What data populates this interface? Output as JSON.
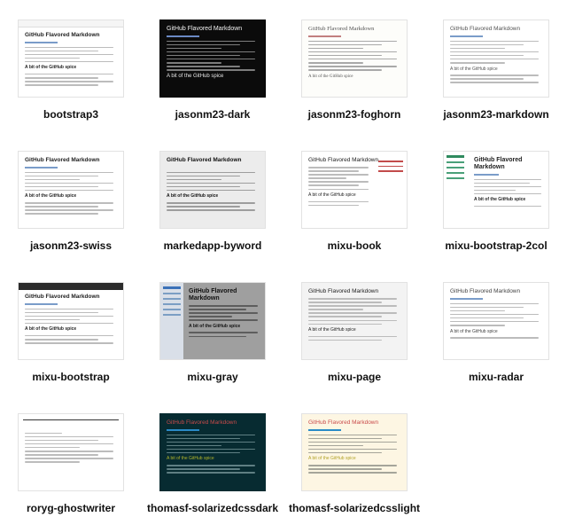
{
  "themes": [
    {
      "id": "bootstrap3",
      "label": "bootstrap3",
      "title": "GitHub Flavored Markdown",
      "subtitle": "A bit of the GitHub spice"
    },
    {
      "id": "jasonm23-dark",
      "label": "jasonm23-dark",
      "title": "GitHub Flavored Markdown",
      "subtitle": "A bit of the GitHub spice"
    },
    {
      "id": "jasonm23-foghorn",
      "label": "jasonm23-foghorn",
      "title": "GitHub Flavored Markdown",
      "subtitle": "A bit of the GitHub spice"
    },
    {
      "id": "jasonm23-markdown",
      "label": "jasonm23-markdown",
      "title": "GitHub Flavored Markdown",
      "subtitle": "A bit of the GitHub spice"
    },
    {
      "id": "jasonm23-swiss",
      "label": "jasonm23-swiss",
      "title": "GitHub Flavored Markdown",
      "subtitle": "A bit of the GitHub spice"
    },
    {
      "id": "markedapp-byword",
      "label": "markedapp-byword",
      "title": "GitHub Flavored Markdown",
      "subtitle": "A bit of the GitHub spice"
    },
    {
      "id": "mixu-book",
      "label": "mixu-book",
      "title": "GitHub Flavored Markdown",
      "subtitle": "A bit of the GitHub spice"
    },
    {
      "id": "mixu-bootstrap-2col",
      "label": "mixu-bootstrap-2col",
      "title": "GitHub Flavored Markdown",
      "subtitle": "A bit of the GitHub spice"
    },
    {
      "id": "mixu-bootstrap",
      "label": "mixu-bootstrap",
      "title": "GitHub Flavored Markdown",
      "subtitle": "A bit of the GitHub spice"
    },
    {
      "id": "mixu-gray",
      "label": "mixu-gray",
      "title": "GitHub Flavored Markdown",
      "subtitle": "A bit of the GitHub spice"
    },
    {
      "id": "mixu-page",
      "label": "mixu-page",
      "title": "GitHub Flavored Markdown",
      "subtitle": "A bit of the GitHub spice"
    },
    {
      "id": "mixu-radar",
      "label": "mixu-radar",
      "title": "GitHub Flavored Markdown",
      "subtitle": "A bit of the GitHub spice"
    },
    {
      "id": "roryg-ghostwriter",
      "label": "roryg-ghostwriter",
      "title": "",
      "subtitle": ""
    },
    {
      "id": "thomasf-solarizedcssdark",
      "label": "thomasf-solarizedcssdark",
      "title": "GitHub Flavored Markdown",
      "subtitle": "A bit of the GitHub spice"
    },
    {
      "id": "thomasf-solarizedcsslight",
      "label": "thomasf-solarizedcsslight",
      "title": "GitHub Flavored Markdown",
      "subtitle": "A bit of the GitHub spice"
    }
  ],
  "colors": {
    "page_background": "#ffffff",
    "caption_text": "#111111",
    "dark_theme_bg": "#0b0b0b",
    "solarized_dark_bg": "#072b31",
    "solarized_light_bg": "#fdf6e3",
    "solarized_title": "#c94b4b"
  }
}
